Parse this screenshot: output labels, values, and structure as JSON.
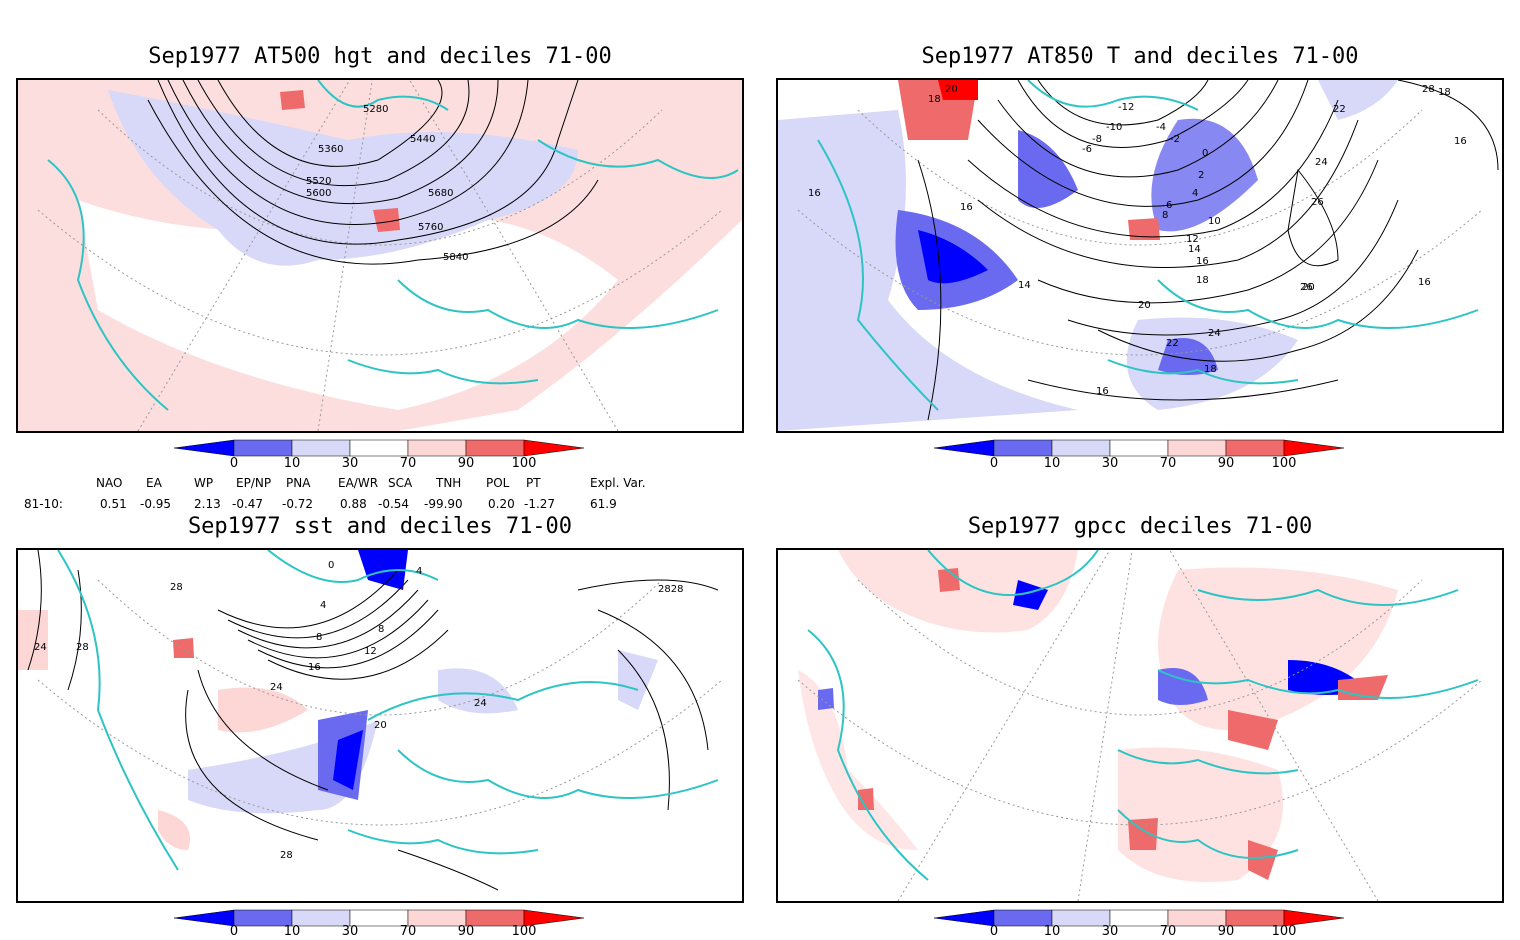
{
  "panels": [
    {
      "title": "Sep1977 AT500 hgt and deciles 71-00",
      "contour_labels": [
        "5280",
        "5360",
        "5440",
        "5520",
        "5600",
        "5680",
        "5760",
        "5840"
      ]
    },
    {
      "title": "Sep1977 AT850 T and deciles 71-00",
      "contour_labels": [
        "20",
        "18",
        "16",
        "-12",
        "-10",
        "-8",
        "-6",
        "-4",
        "-2",
        "0",
        "2",
        "4",
        "6",
        "8",
        "10",
        "12",
        "14",
        "16",
        "18",
        "22",
        "24",
        "26",
        "28",
        "20",
        "22",
        "24",
        "18",
        "16",
        "18",
        "16",
        "20",
        "16",
        "14",
        "26",
        "16"
      ]
    },
    {
      "title": "Sep1977 sst and deciles 71-00",
      "contour_labels": [
        "28",
        "24",
        "28",
        "4",
        "8",
        "12",
        "16",
        "20",
        "24",
        "24",
        "28",
        "2828",
        "0",
        "4",
        "8"
      ]
    },
    {
      "title": "Sep1977 gpcc deciles 71-00",
      "contour_labels": []
    }
  ],
  "colorbar": {
    "ticks": [
      "0",
      "10",
      "30",
      "70",
      "90",
      "100"
    ],
    "colors": [
      "#0000ff",
      "#6a6af0",
      "#d8d8f8",
      "#ffffff",
      "#fdd6d6",
      "#ef6a6a",
      "#ff0000"
    ]
  },
  "indices": {
    "headers": [
      "NAO",
      "EA",
      "WP",
      "EP/NP",
      "PNA",
      "EA/WR",
      "SCA",
      "TNH",
      "POL",
      "PT",
      "Expl. Var."
    ],
    "row_label": "81-10:",
    "values": [
      "0.51",
      "-0.95",
      "2.13",
      "-0.47",
      "-0.72",
      "0.88",
      "-0.54",
      "-99.90",
      "0.20",
      "-1.27",
      "61.9"
    ]
  },
  "colors": {
    "coast": "#2ec4c4",
    "blue_dark": "#0000ff",
    "blue_mid": "#6a6af0",
    "blue_light": "#d8d8f8",
    "red_light": "#fdd6d6",
    "red_mid": "#ef6a6a",
    "red_dark": "#ff0000"
  }
}
